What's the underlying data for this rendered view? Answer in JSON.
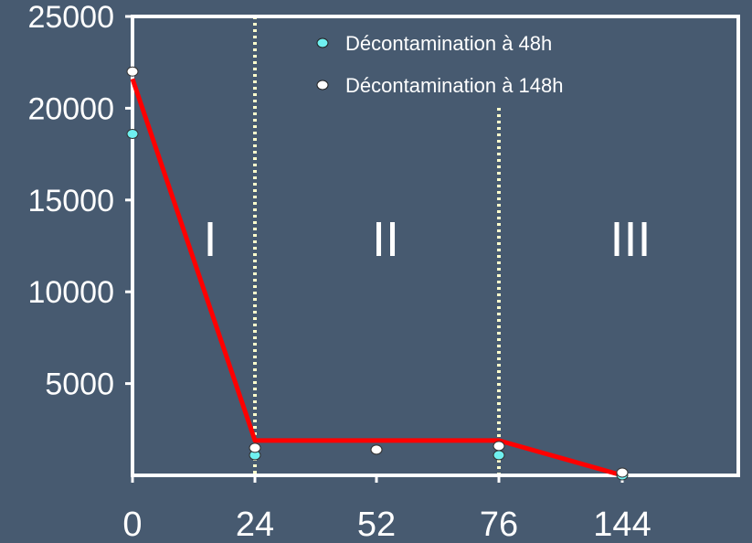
{
  "chart_data": {
    "type": "line",
    "x_tick_labels": [
      "0",
      "24",
      "52",
      "76",
      "144"
    ],
    "y_ticks": [
      5000,
      10000,
      15000,
      20000,
      25000
    ],
    "ylim": [
      0,
      25000
    ],
    "grid": false,
    "legend_position": "top-center",
    "phase_labels": [
      "I",
      "II",
      "III"
    ],
    "series": [
      {
        "name": "Décontamination à 48h",
        "color": "#6ff0f0",
        "x": [
          "0",
          "24",
          "52",
          "76",
          "144"
        ],
        "values": [
          18600,
          1100,
          1400,
          1100,
          0
        ]
      },
      {
        "name": "Décontamination à 148h",
        "color": "#ffffff",
        "x": [
          "0",
          "24",
          "52",
          "76",
          "144"
        ],
        "values": [
          22000,
          1500,
          1400,
          1600,
          150
        ]
      }
    ],
    "trend_line": {
      "color": "#ff0000",
      "x": [
        "0",
        "24",
        "52",
        "76",
        "144"
      ],
      "values": [
        21600,
        1900,
        1900,
        1900,
        0
      ]
    },
    "phase_dividers": {
      "color": "#ffffcc",
      "x": [
        "24",
        "76"
      ]
    }
  }
}
